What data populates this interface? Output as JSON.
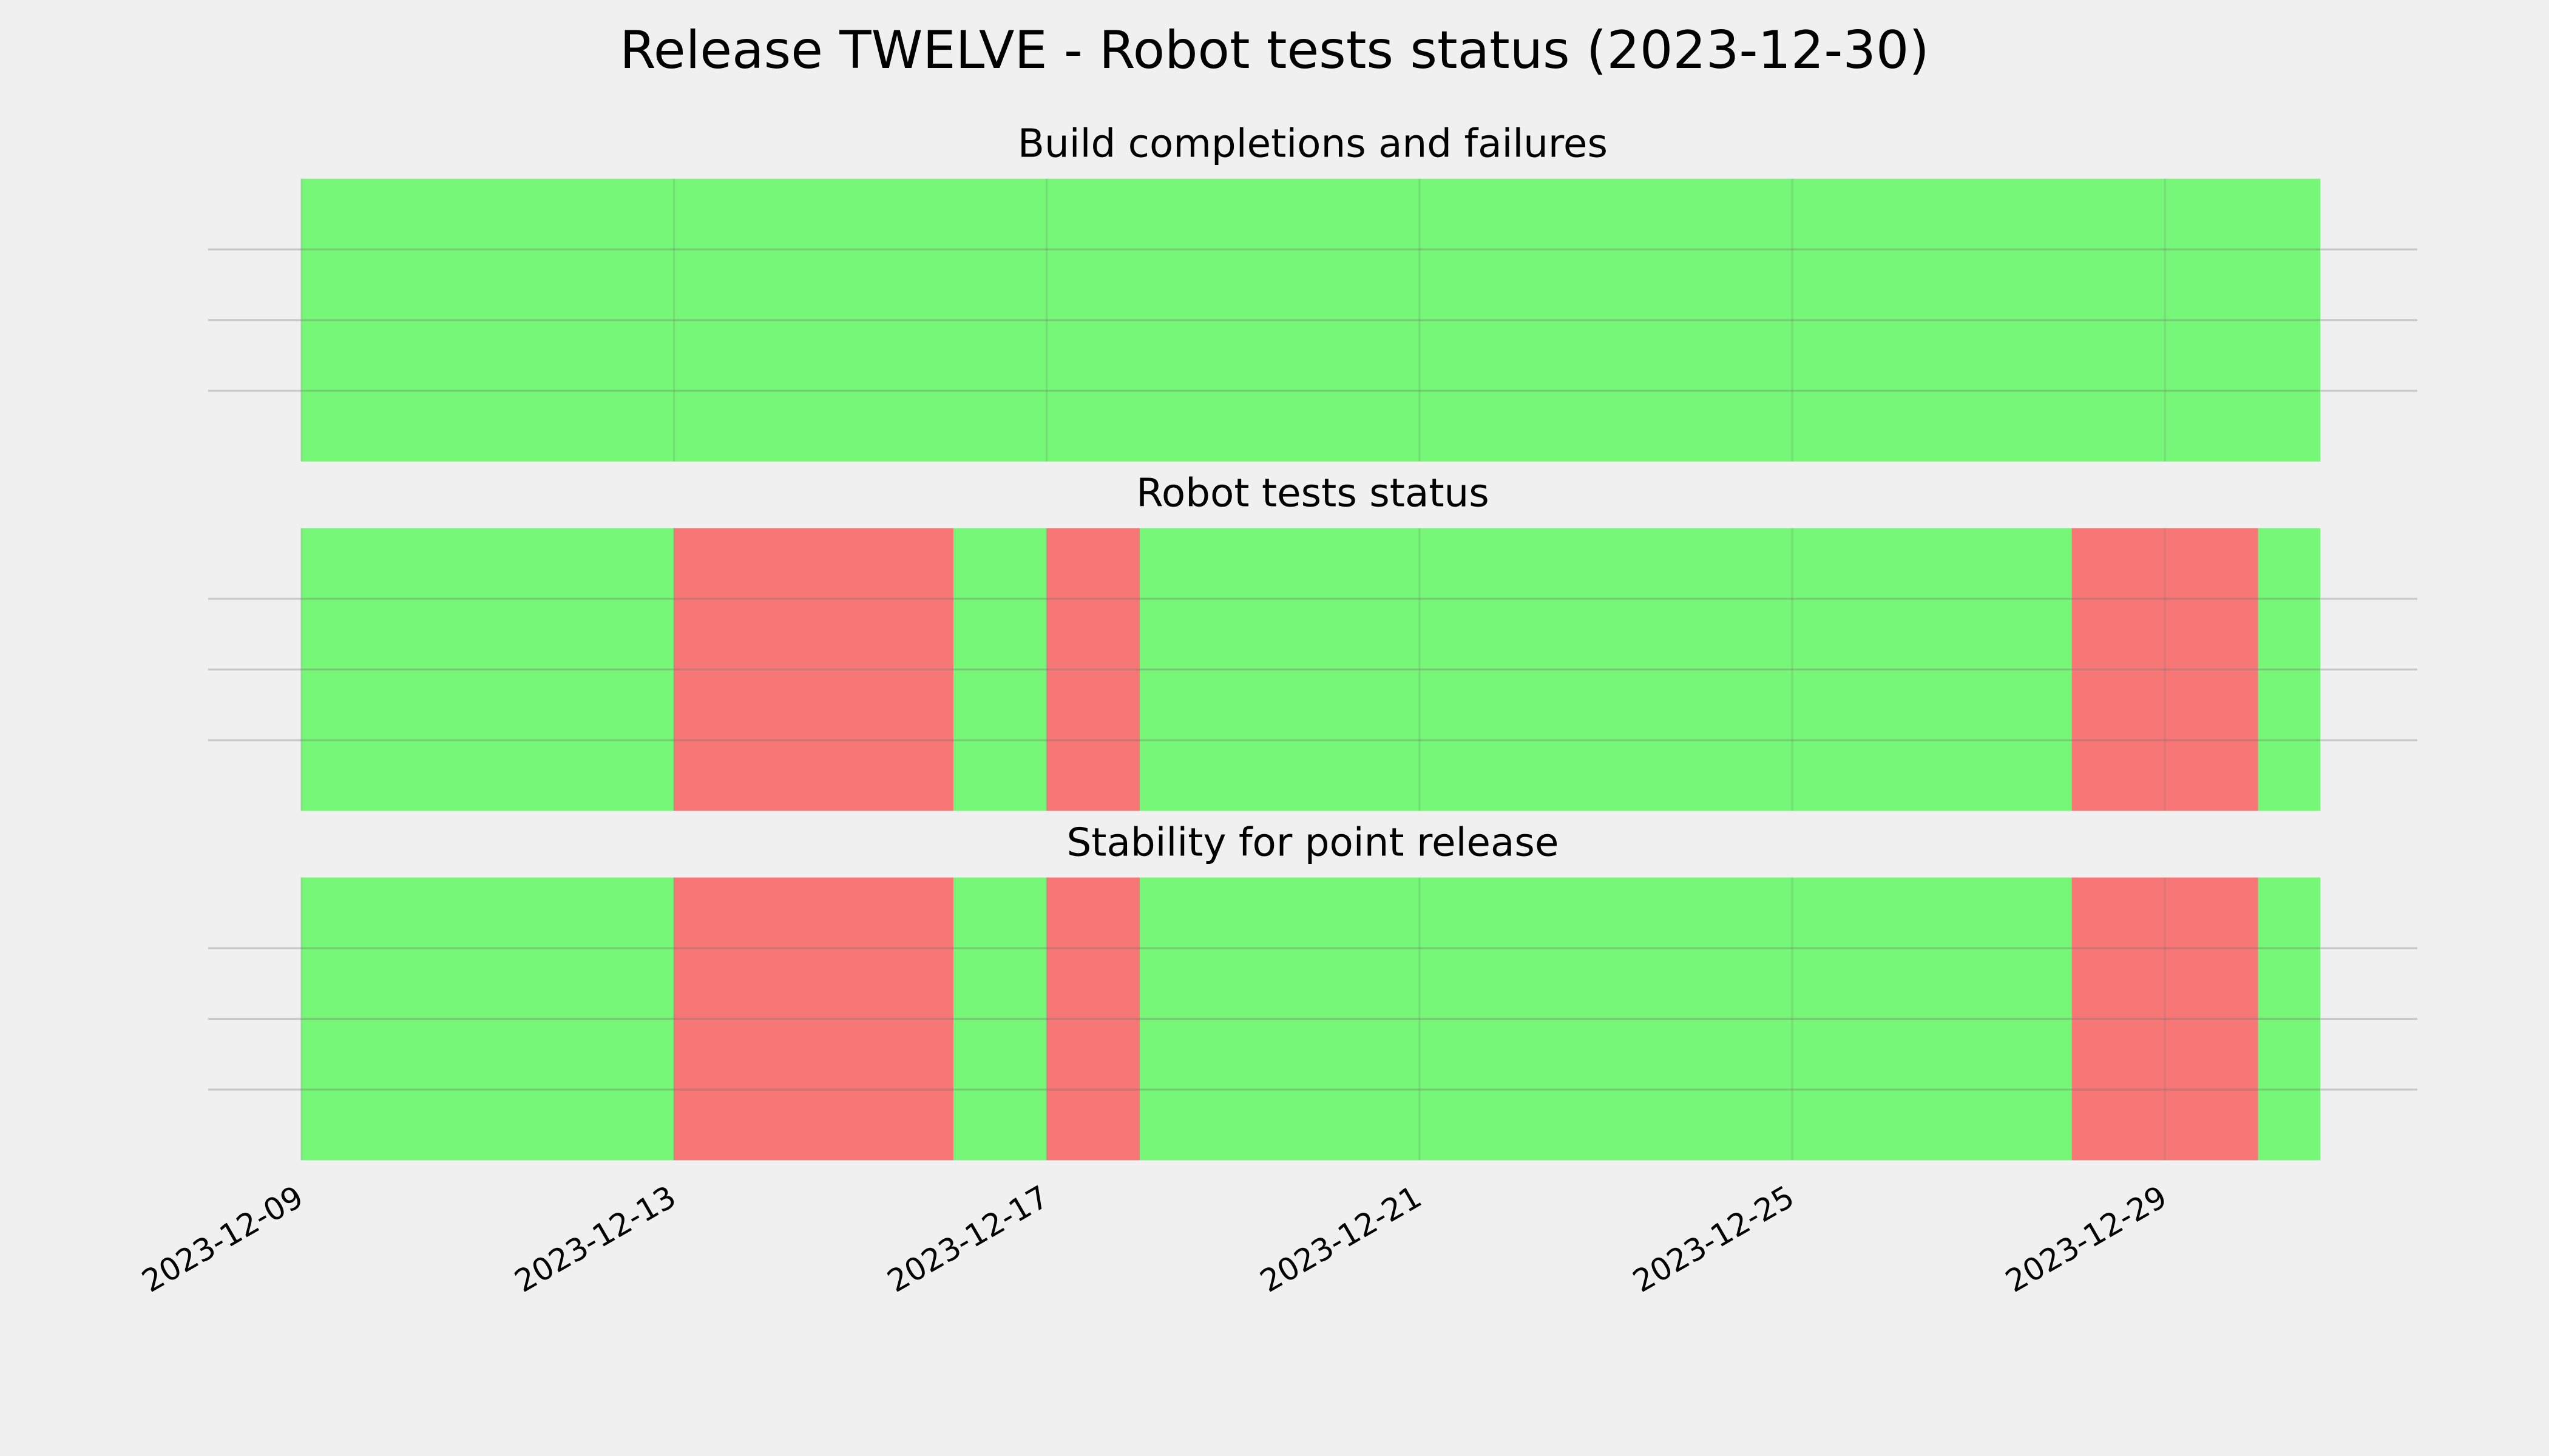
{
  "title": "Release TWELVE - Robot tests status (2023-12-30)",
  "chart_data": [
    {
      "type": "timeline",
      "title": "Build completions and failures",
      "spans": [
        {
          "start": "2023-12-09",
          "end": "2023-12-30T16:00",
          "color": "#76f777"
        }
      ],
      "xlim": [
        "2023-12-08T00:00",
        "2023-12-31T17:00"
      ],
      "xticks": [
        "2023-12-09",
        "2023-12-13",
        "2023-12-17",
        "2023-12-21",
        "2023-12-25",
        "2023-12-29"
      ],
      "ylim": [
        0,
        1
      ],
      "yticks": [
        0.25,
        0.5,
        0.75
      ],
      "grid": true
    },
    {
      "type": "timeline",
      "title": "Robot tests status",
      "spans": [
        {
          "start": "2023-12-09",
          "end": "2023-12-13",
          "color": "#76f777"
        },
        {
          "start": "2023-12-13",
          "end": "2023-12-16",
          "color": "#f77777"
        },
        {
          "start": "2023-12-16",
          "end": "2023-12-17",
          "color": "#76f777"
        },
        {
          "start": "2023-12-17",
          "end": "2023-12-18",
          "color": "#f77777"
        },
        {
          "start": "2023-12-18",
          "end": "2023-12-28",
          "color": "#76f777"
        },
        {
          "start": "2023-12-28",
          "end": "2023-12-30",
          "color": "#f77777"
        },
        {
          "start": "2023-12-30",
          "end": "2023-12-30T16:00",
          "color": "#76f777"
        }
      ],
      "xlim": [
        "2023-12-08T00:00",
        "2023-12-31T17:00"
      ],
      "xticks": [
        "2023-12-09",
        "2023-12-13",
        "2023-12-17",
        "2023-12-21",
        "2023-12-25",
        "2023-12-29"
      ],
      "ylim": [
        0,
        1
      ],
      "yticks": [
        0.25,
        0.5,
        0.75
      ],
      "grid": true
    },
    {
      "type": "timeline",
      "title": "Stability for point release",
      "spans": [
        {
          "start": "2023-12-09",
          "end": "2023-12-13",
          "color": "#76f777"
        },
        {
          "start": "2023-12-13",
          "end": "2023-12-16",
          "color": "#f77777"
        },
        {
          "start": "2023-12-16",
          "end": "2023-12-17",
          "color": "#76f777"
        },
        {
          "start": "2023-12-17",
          "end": "2023-12-18",
          "color": "#f77777"
        },
        {
          "start": "2023-12-18",
          "end": "2023-12-28",
          "color": "#76f777"
        },
        {
          "start": "2023-12-28",
          "end": "2023-12-30",
          "color": "#f77777"
        },
        {
          "start": "2023-12-30",
          "end": "2023-12-30T16:00",
          "color": "#76f777"
        }
      ],
      "xlim": [
        "2023-12-08T00:00",
        "2023-12-31T17:00"
      ],
      "xticks": [
        "2023-12-09",
        "2023-12-13",
        "2023-12-17",
        "2023-12-21",
        "2023-12-25",
        "2023-12-29"
      ],
      "ylim": [
        0,
        1
      ],
      "yticks": [
        0.25,
        0.5,
        0.75
      ],
      "grid": true
    }
  ]
}
